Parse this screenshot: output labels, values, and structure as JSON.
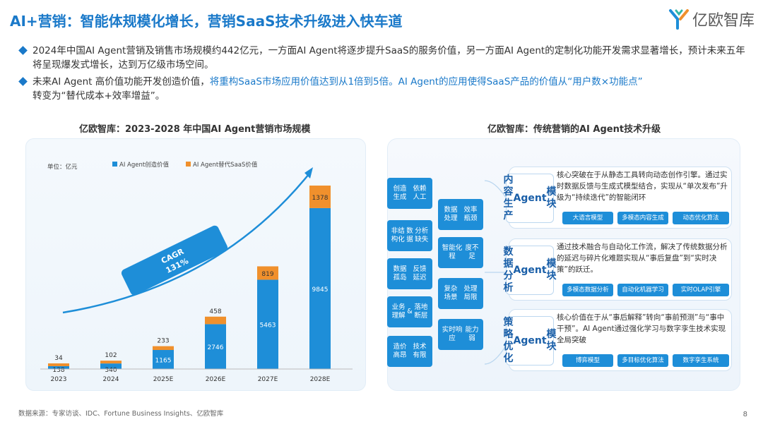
{
  "title": "AI+营销：智能体规模化增长，营销SaaS技术升级进入快车道",
  "brand": {
    "name": "亿欧智库"
  },
  "bullets": [
    {
      "text_a": "2024年中国AI Agent营销及销售市场规模约442亿元，一方面AI Agent将逐步提升SaaS的服务价值，另一方面AI Agent的定制化功能开发需求显著增长，预计未来五年将呈现爆发式增长，达到万亿级市场空间。"
    },
    {
      "text_a": "未来AI Agent 高价值功能开发创造价值，",
      "highlight": "将重构SaaS市场应用价值达到从1倍到5倍。AI Agent的应用使得SaaS产品的价值从“用户数×功能点”",
      "text_b": "转变为“替代成本+效率增益”。"
    }
  ],
  "left_title": "亿欧智库：2023-2028 年中国AI Agent营销市场规模",
  "right_title": "亿欧智库：传统营销的AI Agent技术升级",
  "chart_data": {
    "type": "bar",
    "stacked": true,
    "unit": "单位：亿元",
    "categories": [
      "2023",
      "2024",
      "2025E",
      "2026E",
      "2027E",
      "2028E"
    ],
    "series": [
      {
        "name": "AI Agent创造价值",
        "color": "#1e8ed8",
        "values": [
          138,
          340,
          1165,
          2746,
          5463,
          9845
        ]
      },
      {
        "name": "AI Agent替代SaaS价值",
        "color": "#f0902c",
        "values": [
          34,
          102,
          233,
          458,
          819,
          1378
        ]
      }
    ],
    "annotation": {
      "label": "CAGR",
      "value": "131%"
    },
    "ylim": [
      0,
      11223
    ]
  },
  "colors": {
    "accent": "#1a79c9",
    "bar_blue": "#1e8ed8",
    "bar_orange": "#f0902c"
  },
  "diagram": {
    "left_issues": [
      [
        "创造生成",
        "依赖人工"
      ],
      [
        "非结构化",
        "数据",
        "分析缺失"
      ],
      [
        "数据孤岛",
        "反馈延迟"
      ],
      [
        "业务理解",
        "&",
        "落地断层"
      ],
      [
        "造价高昂",
        "技术有限"
      ]
    ],
    "mid_issues": [
      [
        "数据处理",
        "效率瓶颈"
      ],
      [
        "智能化程",
        "度不足"
      ],
      [
        "复杂场景",
        "处理局限"
      ],
      [
        "实时响应",
        "能力弱"
      ]
    ],
    "modules": [
      {
        "name": [
          "内容生产",
          "Agent",
          "模块"
        ],
        "desc": "核心突破在于从静态工具转向动态创作引擎。通过实时数据反馈与生成式模型结合，实现从“单次发布”升级为“持续迭代”的智能闭环",
        "tags": [
          "大语言模型",
          "多模态内容生成",
          "动态优化算法"
        ]
      },
      {
        "name": [
          "数据分析",
          "Agent",
          "模块"
        ],
        "desc": "通过技术融合与自动化工作流，解决了传统数据分析的延迟与碎片化难题实现从“事后复盘”到“实时决策”的跃迁。",
        "tags": [
          "多模态数据分析",
          "自动化机器学习",
          "实时OLAP引擎"
        ]
      },
      {
        "name": [
          "策略优化",
          "Agent",
          "模块"
        ],
        "desc": "核心价值在于从“事后解释”转向“事前预测”与“事中干预”。AI Agent通过强化学习与数字孪生技术实现全局突破",
        "tags": [
          "博弈模型",
          "多目标优化算法",
          "数字孪生系统"
        ]
      }
    ]
  },
  "footer": "数据来源：专家访谈、IDC、Fortune Business Insights、亿欧智库",
  "page_number": "8"
}
